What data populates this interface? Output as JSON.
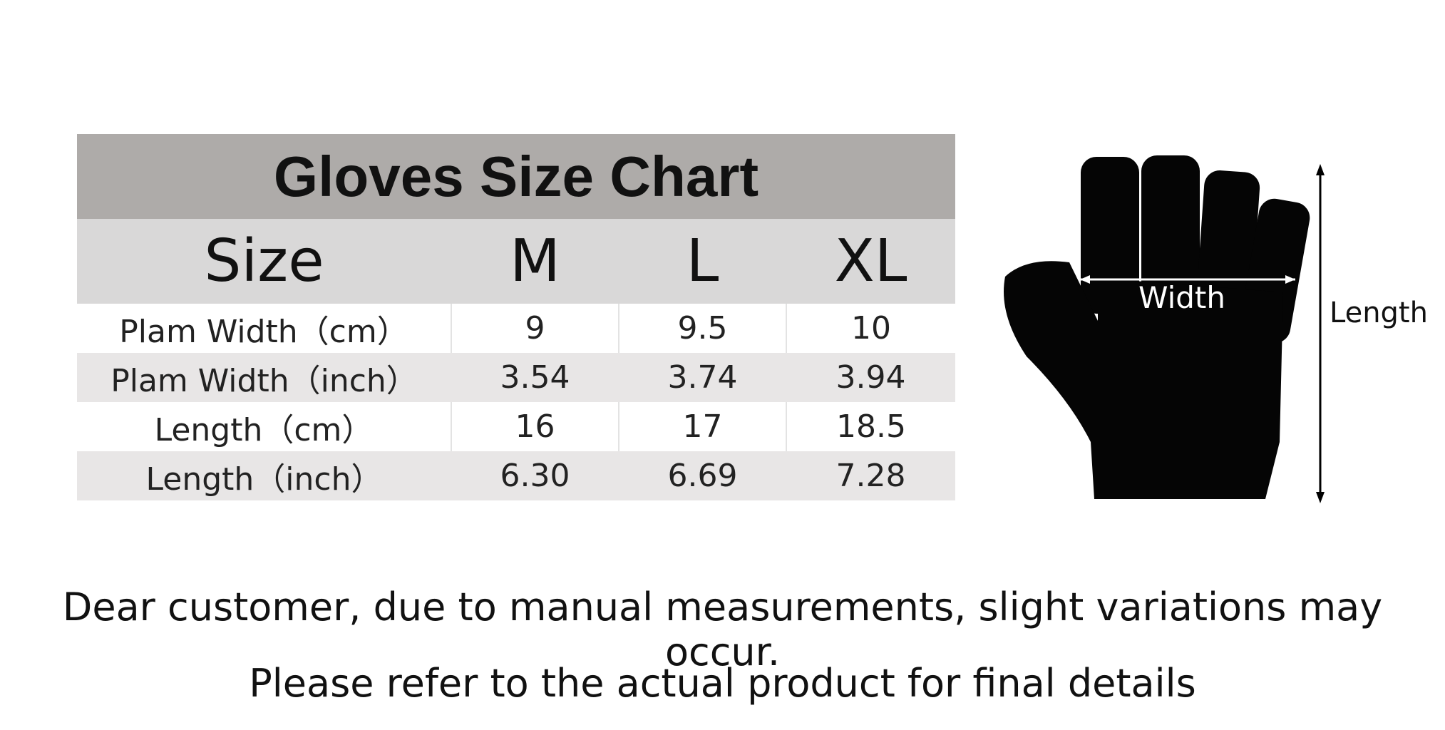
{
  "header": {
    "title": "Gloves Size Chart"
  },
  "table": {
    "headers": [
      "Size",
      "M",
      "L",
      "XL"
    ],
    "rows": [
      [
        "Plam Width（cm）",
        "9",
        "9.5",
        "10"
      ],
      [
        "Plam Width（inch）",
        "3.54",
        "3.74",
        "3.94"
      ],
      [
        "Length（cm）",
        "16",
        "17",
        "18.5"
      ],
      [
        "Length（inch）",
        "6.30",
        "6.69",
        "7.28"
      ]
    ]
  },
  "diagram": {
    "width_label": "Width",
    "length_label": "Length"
  },
  "notes": [
    "Dear customer, due to manual measurements, slight variations may occur.",
    "Please refer to the actual product for final details"
  ]
}
